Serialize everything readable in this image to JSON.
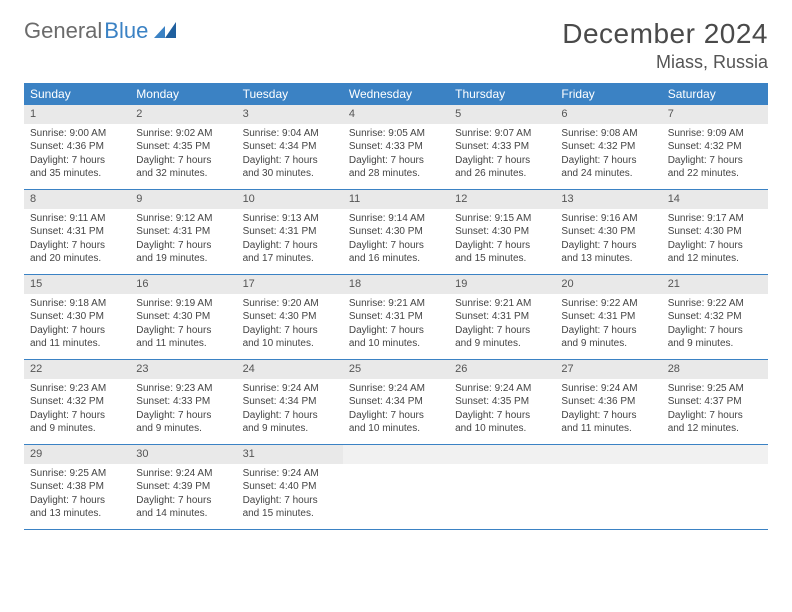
{
  "brand": {
    "part1": "General",
    "part2": "Blue"
  },
  "title": "December 2024",
  "location": "Miass, Russia",
  "colors": {
    "header_bg": "#3b82c4",
    "daynum_bg": "#e9e9e9",
    "border": "#3b82c4",
    "text": "#444444"
  },
  "typography": {
    "title_fontsize": 28,
    "location_fontsize": 18,
    "dow_fontsize": 12,
    "cell_fontsize": 10
  },
  "dow": [
    "Sunday",
    "Monday",
    "Tuesday",
    "Wednesday",
    "Thursday",
    "Friday",
    "Saturday"
  ],
  "weeks": [
    [
      {
        "n": "1",
        "sr": "9:00 AM",
        "ss": "4:36 PM",
        "dl": "7 hours and 35 minutes."
      },
      {
        "n": "2",
        "sr": "9:02 AM",
        "ss": "4:35 PM",
        "dl": "7 hours and 32 minutes."
      },
      {
        "n": "3",
        "sr": "9:04 AM",
        "ss": "4:34 PM",
        "dl": "7 hours and 30 minutes."
      },
      {
        "n": "4",
        "sr": "9:05 AM",
        "ss": "4:33 PM",
        "dl": "7 hours and 28 minutes."
      },
      {
        "n": "5",
        "sr": "9:07 AM",
        "ss": "4:33 PM",
        "dl": "7 hours and 26 minutes."
      },
      {
        "n": "6",
        "sr": "9:08 AM",
        "ss": "4:32 PM",
        "dl": "7 hours and 24 minutes."
      },
      {
        "n": "7",
        "sr": "9:09 AM",
        "ss": "4:32 PM",
        "dl": "7 hours and 22 minutes."
      }
    ],
    [
      {
        "n": "8",
        "sr": "9:11 AM",
        "ss": "4:31 PM",
        "dl": "7 hours and 20 minutes."
      },
      {
        "n": "9",
        "sr": "9:12 AM",
        "ss": "4:31 PM",
        "dl": "7 hours and 19 minutes."
      },
      {
        "n": "10",
        "sr": "9:13 AM",
        "ss": "4:31 PM",
        "dl": "7 hours and 17 minutes."
      },
      {
        "n": "11",
        "sr": "9:14 AM",
        "ss": "4:30 PM",
        "dl": "7 hours and 16 minutes."
      },
      {
        "n": "12",
        "sr": "9:15 AM",
        "ss": "4:30 PM",
        "dl": "7 hours and 15 minutes."
      },
      {
        "n": "13",
        "sr": "9:16 AM",
        "ss": "4:30 PM",
        "dl": "7 hours and 13 minutes."
      },
      {
        "n": "14",
        "sr": "9:17 AM",
        "ss": "4:30 PM",
        "dl": "7 hours and 12 minutes."
      }
    ],
    [
      {
        "n": "15",
        "sr": "9:18 AM",
        "ss": "4:30 PM",
        "dl": "7 hours and 11 minutes."
      },
      {
        "n": "16",
        "sr": "9:19 AM",
        "ss": "4:30 PM",
        "dl": "7 hours and 11 minutes."
      },
      {
        "n": "17",
        "sr": "9:20 AM",
        "ss": "4:30 PM",
        "dl": "7 hours and 10 minutes."
      },
      {
        "n": "18",
        "sr": "9:21 AM",
        "ss": "4:31 PM",
        "dl": "7 hours and 10 minutes."
      },
      {
        "n": "19",
        "sr": "9:21 AM",
        "ss": "4:31 PM",
        "dl": "7 hours and 9 minutes."
      },
      {
        "n": "20",
        "sr": "9:22 AM",
        "ss": "4:31 PM",
        "dl": "7 hours and 9 minutes."
      },
      {
        "n": "21",
        "sr": "9:22 AM",
        "ss": "4:32 PM",
        "dl": "7 hours and 9 minutes."
      }
    ],
    [
      {
        "n": "22",
        "sr": "9:23 AM",
        "ss": "4:32 PM",
        "dl": "7 hours and 9 minutes."
      },
      {
        "n": "23",
        "sr": "9:23 AM",
        "ss": "4:33 PM",
        "dl": "7 hours and 9 minutes."
      },
      {
        "n": "24",
        "sr": "9:24 AM",
        "ss": "4:34 PM",
        "dl": "7 hours and 9 minutes."
      },
      {
        "n": "25",
        "sr": "9:24 AM",
        "ss": "4:34 PM",
        "dl": "7 hours and 10 minutes."
      },
      {
        "n": "26",
        "sr": "9:24 AM",
        "ss": "4:35 PM",
        "dl": "7 hours and 10 minutes."
      },
      {
        "n": "27",
        "sr": "9:24 AM",
        "ss": "4:36 PM",
        "dl": "7 hours and 11 minutes."
      },
      {
        "n": "28",
        "sr": "9:25 AM",
        "ss": "4:37 PM",
        "dl": "7 hours and 12 minutes."
      }
    ],
    [
      {
        "n": "29",
        "sr": "9:25 AM",
        "ss": "4:38 PM",
        "dl": "7 hours and 13 minutes."
      },
      {
        "n": "30",
        "sr": "9:24 AM",
        "ss": "4:39 PM",
        "dl": "7 hours and 14 minutes."
      },
      {
        "n": "31",
        "sr": "9:24 AM",
        "ss": "4:40 PM",
        "dl": "7 hours and 15 minutes."
      },
      {
        "empty": true
      },
      {
        "empty": true
      },
      {
        "empty": true
      },
      {
        "empty": true
      }
    ]
  ],
  "labels": {
    "sunrise": "Sunrise:",
    "sunset": "Sunset:",
    "daylight": "Daylight:"
  }
}
